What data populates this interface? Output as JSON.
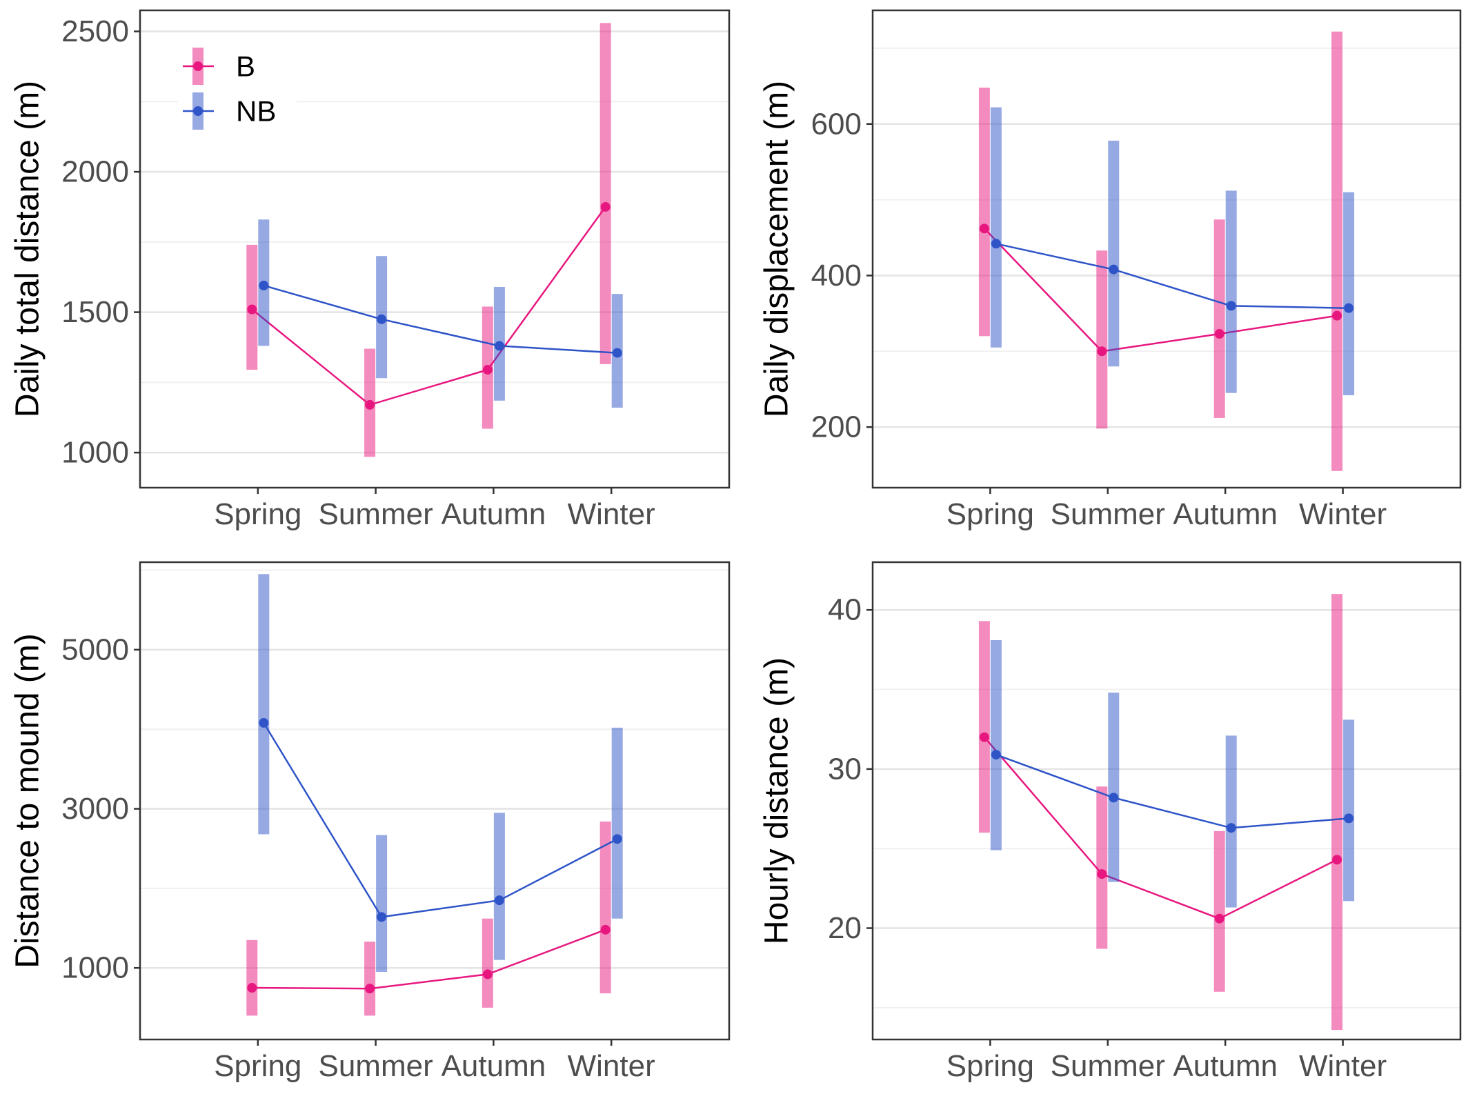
{
  "legend": {
    "entries": [
      {
        "label": "B",
        "color": "#e8177f"
      },
      {
        "label": "NB",
        "color": "#2e54c8"
      }
    ]
  },
  "chart_data": [
    {
      "type": "line",
      "ylabel": "Daily total distance (m)",
      "xlabel": "",
      "categories": [
        "Spring",
        "Summer",
        "Autumn",
        "Winter"
      ],
      "ylim": [
        875,
        2575
      ],
      "yticks": [
        1000,
        1500,
        2000,
        2500
      ],
      "grid": true,
      "legend": "top-left",
      "series": [
        {
          "name": "B",
          "color": "#e8177f",
          "values": [
            1510,
            1170,
            1295,
            1875
          ],
          "lower": [
            1295,
            985,
            1085,
            1315
          ],
          "upper": [
            1740,
            1370,
            1520,
            2530
          ]
        },
        {
          "name": "NB",
          "color": "#2e54c8",
          "values": [
            1595,
            1475,
            1380,
            1355
          ],
          "lower": [
            1380,
            1265,
            1185,
            1160
          ],
          "upper": [
            1830,
            1700,
            1590,
            1565
          ]
        }
      ]
    },
    {
      "type": "line",
      "ylabel": "Daily displacement (m)",
      "xlabel": "",
      "categories": [
        "Spring",
        "Summer",
        "Autumn",
        "Winter"
      ],
      "ylim": [
        120,
        750
      ],
      "yticks": [
        200,
        400,
        600
      ],
      "grid": true,
      "series": [
        {
          "name": "B",
          "color": "#e8177f",
          "values": [
            462,
            300,
            323,
            347
          ],
          "lower": [
            320,
            198,
            212,
            142
          ],
          "upper": [
            648,
            433,
            474,
            722
          ]
        },
        {
          "name": "NB",
          "color": "#2e54c8",
          "values": [
            442,
            408,
            360,
            357
          ],
          "lower": [
            305,
            280,
            245,
            242
          ],
          "upper": [
            622,
            578,
            512,
            510
          ]
        }
      ]
    },
    {
      "type": "line",
      "ylabel": "Distance to mound (m)",
      "xlabel": "",
      "categories": [
        "Spring",
        "Summer",
        "Autumn",
        "Winter"
      ],
      "ylim": [
        100,
        6100
      ],
      "yticks": [
        1000,
        3000,
        5000
      ],
      "grid": true,
      "series": [
        {
          "name": "B",
          "color": "#e8177f",
          "values": [
            750,
            740,
            920,
            1480
          ],
          "lower": [
            400,
            400,
            500,
            680
          ],
          "upper": [
            1350,
            1330,
            1620,
            2840
          ]
        },
        {
          "name": "NB",
          "color": "#2e54c8",
          "values": [
            4080,
            1640,
            1850,
            2620
          ],
          "lower": [
            2680,
            950,
            1100,
            1620
          ],
          "upper": [
            5950,
            2670,
            2950,
            4020
          ]
        }
      ]
    },
    {
      "type": "line",
      "ylabel": "Hourly distance (m)",
      "xlabel": "",
      "categories": [
        "Spring",
        "Summer",
        "Autumn",
        "Winter"
      ],
      "ylim": [
        13,
        43
      ],
      "yticks": [
        20,
        30,
        40
      ],
      "grid": true,
      "series": [
        {
          "name": "B",
          "color": "#e8177f",
          "values": [
            32.0,
            23.4,
            20.6,
            24.3
          ],
          "lower": [
            26.0,
            18.7,
            16.0,
            13.6
          ],
          "upper": [
            39.3,
            28.9,
            26.1,
            41.0
          ]
        },
        {
          "name": "NB",
          "color": "#2e54c8",
          "values": [
            30.9,
            28.2,
            26.3,
            26.9
          ],
          "lower": [
            24.9,
            22.9,
            21.3,
            21.7
          ],
          "upper": [
            38.1,
            34.8,
            32.1,
            33.1
          ]
        }
      ]
    }
  ]
}
